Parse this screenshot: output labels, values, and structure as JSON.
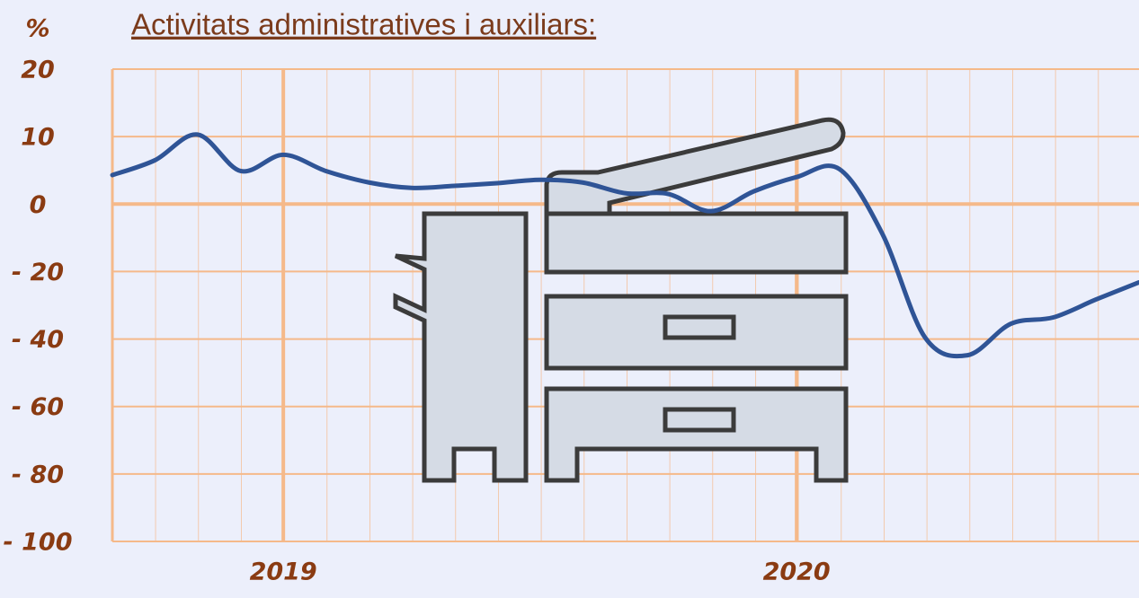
{
  "chart_data": {
    "type": "line",
    "title": "Activitats administratives i auxiliars:",
    "y_label": "%",
    "x": [
      2018.667,
      2018.75,
      2018.833,
      2018.917,
      2019,
      2019.083,
      2019.167,
      2019.25,
      2019.333,
      2019.417,
      2019.5,
      2019.583,
      2019.667,
      2019.75,
      2019.833,
      2019.917,
      2020,
      2020.083,
      2020.167,
      2020.25,
      2020.333,
      2020.417,
      2020.5,
      2020.583,
      2020.667
    ],
    "series": [
      {
        "color": "#2f5496",
        "values": [
          4.3,
          6.5,
          10.3,
          4.9,
          7.3,
          4.9,
          3.2,
          2.4,
          2.7,
          3.1,
          3.6,
          3.2,
          1.6,
          1.5,
          -2.1,
          1.9,
          4.0,
          5.2,
          -8.8,
          -39.5,
          -44.8,
          -35.5,
          -33.6,
          -28.3,
          -23.2
        ]
      }
    ],
    "xlim": [
      2018.667,
      2020.667
    ],
    "xticks": [
      2019,
      2020
    ],
    "ylim": [
      -100,
      20
    ],
    "yticks": [
      20,
      10,
      0,
      {
        "value": -20,
        "label": "- 20"
      },
      {
        "value": -40,
        "label": "- 40"
      },
      {
        "value": -60,
        "label": "- 60"
      },
      {
        "value": -80,
        "label": "- 80"
      },
      {
        "value": -100,
        "label": "- 100"
      }
    ],
    "grid": true
  }
}
